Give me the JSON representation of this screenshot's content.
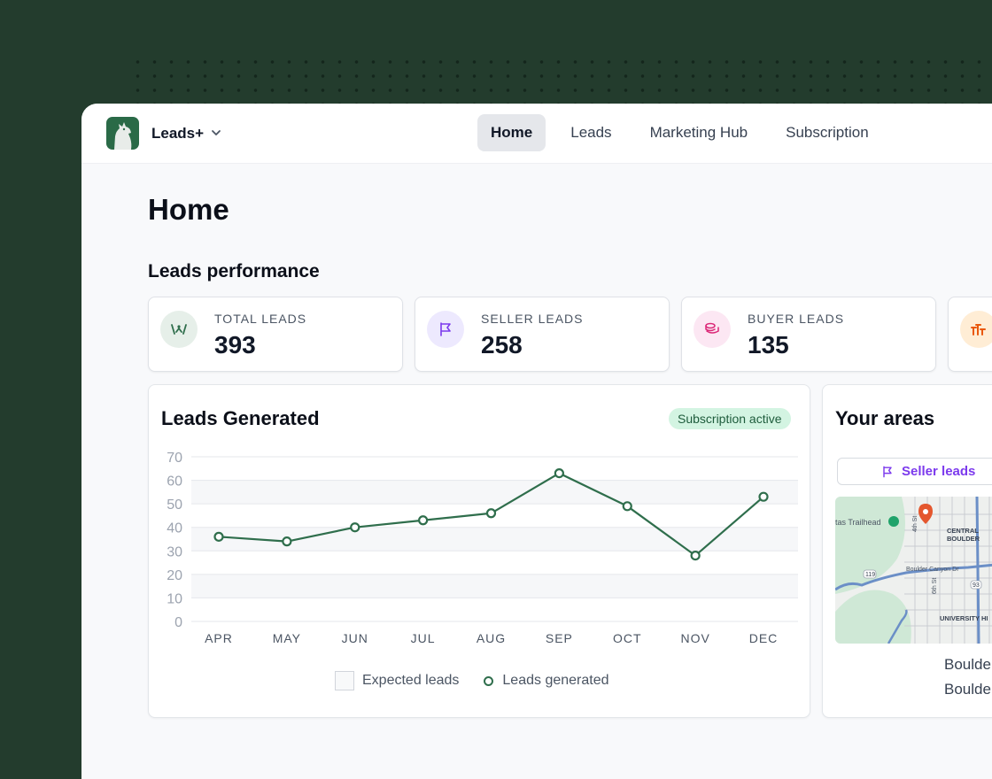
{
  "app": {
    "name": "Leads+"
  },
  "nav": {
    "items": [
      {
        "label": "Home",
        "active": true
      },
      {
        "label": "Leads",
        "active": false
      },
      {
        "label": "Marketing Hub",
        "active": false
      },
      {
        "label": "Subscription",
        "active": false
      }
    ]
  },
  "page": {
    "title": "Home"
  },
  "performance": {
    "title": "Leads performance",
    "cards": [
      {
        "label": "TOTAL LEADS",
        "value": "393",
        "icon": "handshake-icon",
        "color": "#e6efe9"
      },
      {
        "label": "SELLER LEADS",
        "value": "258",
        "icon": "flag-icon",
        "color": "#ede9fe"
      },
      {
        "label": "BUYER LEADS",
        "value": "135",
        "icon": "coins-icon",
        "color": "#fce7f3"
      }
    ]
  },
  "chart": {
    "title": "Leads Generated",
    "badge": "Subscription active",
    "legend": {
      "expected": "Expected leads",
      "generated": "Leads generated"
    }
  },
  "chart_data": {
    "type": "line",
    "categories": [
      "APR",
      "MAY",
      "JUN",
      "JUL",
      "AUG",
      "SEP",
      "OCT",
      "NOV",
      "DEC"
    ],
    "series": [
      {
        "name": "Leads generated",
        "values": [
          36,
          34,
          40,
          43,
          46,
          63,
          49,
          28,
          53
        ]
      }
    ],
    "yticks": [
      0,
      10,
      20,
      30,
      40,
      50,
      60,
      70
    ],
    "ylim": [
      0,
      70
    ],
    "grid": true,
    "legend_position": "bottom",
    "colors": {
      "line": "#2f6e4c",
      "grid": "#e5e7eb",
      "band": "#f6f7f9"
    }
  },
  "areas": {
    "title": "Your areas",
    "filter_label": "Seller leads",
    "map_labels": {
      "trailhead": "tas Trailhead",
      "central": "CENTRAL",
      "boulder": "BOULDER",
      "university": "UNIVERSITY HI",
      "street_4th": "4th St",
      "street_6th": "6th St",
      "canyon": "Boulder Canyon Dr",
      "route_119": "119",
      "route_93": "93"
    },
    "rows": [
      "Boulde",
      "Boulde"
    ]
  },
  "colors": {
    "brand": "#2a6a47",
    "background": "#233c2d",
    "accent_purple": "#7c3aed",
    "badge_bg": "#d3f4e2"
  }
}
